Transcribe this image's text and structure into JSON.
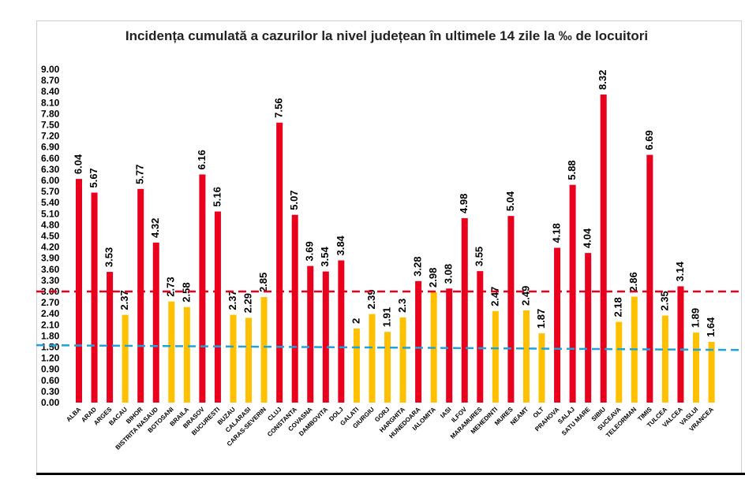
{
  "chart_data": {
    "type": "bar",
    "title": "Incidența cumulată a cazurilor la nivel județean în ultimele 14 zile la ‰ de locuitori",
    "xlabel": "",
    "ylabel": "",
    "ylim": [
      0,
      9.0
    ],
    "ytick_step": 0.3,
    "y_tick_labels": [
      "0.00",
      "0.30",
      "0.60",
      "0.90",
      "1.20",
      "1.50",
      "1.80",
      "2.10",
      "2.40",
      "2.70",
      "3.00",
      "3.30",
      "3.60",
      "3.90",
      "4.20",
      "4.50",
      "4.80",
      "5.10",
      "5.40",
      "5.70",
      "6.00",
      "6.30",
      "6.60",
      "6.90",
      "7.20",
      "7.50",
      "7.80",
      "8.10",
      "8.40",
      "8.70",
      "9.00"
    ],
    "categories": [
      "ALBA",
      "ARAD",
      "ARGES",
      "BACAU",
      "BIHOR",
      "BISTRITA NASAUD",
      "BOTOSANI",
      "BRAILA",
      "BRASOV",
      "BUCURESTI",
      "BUZAU",
      "CALARASI",
      "CARAS-SEVERIN",
      "CLUJ",
      "CONSTANTA",
      "COVASNA",
      "DAMBOVITA",
      "DOLJ",
      "GALATI",
      "GIURGIU",
      "GORJ",
      "HARGHITA",
      "HUNEDOARA",
      "IALOMITA",
      "IASI",
      "ILFOV",
      "MARAMURES",
      "MEHEDINTI",
      "MURES",
      "NEAMT",
      "OLT",
      "PRAHOVA",
      "SALAJ",
      "SATU MARE",
      "SIBIU",
      "SUCEAVA",
      "TELEORMAN",
      "TIMIS",
      "TULCEA",
      "VALCEA",
      "VASLUI",
      "VRANCEA"
    ],
    "values": [
      6.04,
      5.67,
      3.53,
      2.37,
      5.77,
      4.32,
      2.73,
      2.58,
      6.16,
      5.16,
      2.37,
      2.29,
      2.85,
      7.56,
      5.07,
      3.69,
      3.54,
      3.84,
      2,
      2.39,
      1.91,
      2.3,
      3.28,
      2.98,
      3.08,
      4.98,
      3.55,
      2.47,
      5.04,
      2.49,
      1.87,
      4.18,
      5.88,
      4.04,
      8.32,
      2.18,
      2.86,
      6.69,
      2.35,
      3.14,
      1.89,
      1.64
    ],
    "data_labels": [
      "6.04",
      "5.67",
      "3.53",
      "2.37",
      "5.77",
      "4.32",
      "2.73",
      "2.58",
      "6.16",
      "5.16",
      "2.37",
      "2.29",
      "2.85",
      "7.56",
      "5.07",
      "3.69",
      "3.54",
      "3.84",
      "2",
      "2.39",
      "1.91",
      "2.3",
      "3.28",
      "2.98",
      "3.08",
      "4.98",
      "3.55",
      "2.47",
      "5.04",
      "2.49",
      "1.87",
      "4.18",
      "5.88",
      "4.04",
      "8.32",
      "2.18",
      "2.86",
      "6.69",
      "2.35",
      "3.14",
      "1.89",
      "1.64"
    ],
    "threshold_high": 3.0,
    "threshold_high_color": "#e8001c",
    "threshold_low": 1.5,
    "threshold_low_color": "#1fa3d9",
    "color_above_threshold": "#e8001c",
    "color_below_threshold": "#ffc000",
    "grid": false,
    "legend": "none"
  }
}
